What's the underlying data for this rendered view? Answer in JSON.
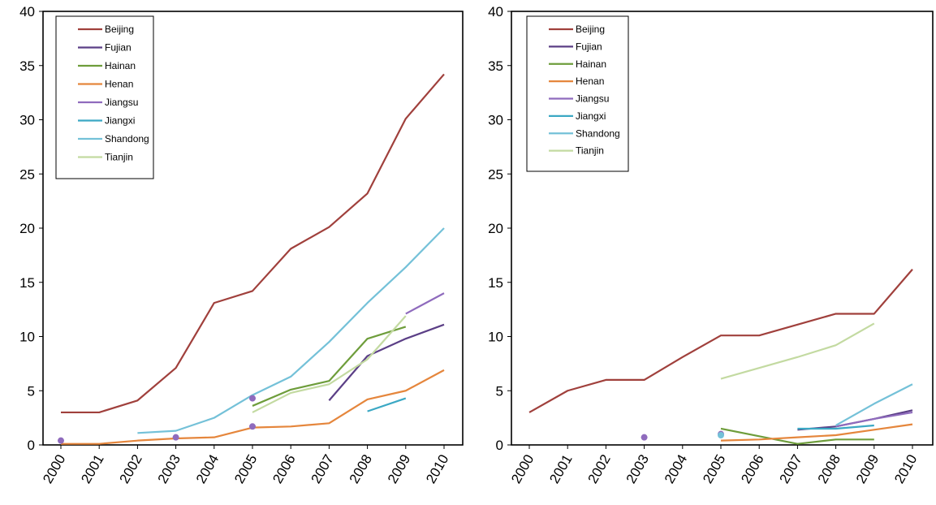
{
  "chart_data": [
    {
      "type": "line",
      "x": [
        "2000",
        "2001",
        "2002",
        "2003",
        "2004",
        "2005",
        "2006",
        "2007",
        "2008",
        "2009",
        "2010"
      ],
      "ylim": [
        0,
        40
      ],
      "yticks": [
        0,
        5,
        10,
        15,
        20,
        25,
        30,
        35,
        40
      ],
      "grid": false,
      "legend": "top-left",
      "series": [
        {
          "name": "Beijing",
          "color": "#a0403c",
          "values": [
            3.0,
            3.0,
            4.1,
            7.1,
            13.1,
            14.2,
            18.1,
            20.1,
            23.2,
            30.1,
            34.2
          ]
        },
        {
          "name": "Fujian",
          "color": "#5b3f86",
          "values": [
            null,
            null,
            null,
            null,
            null,
            null,
            null,
            4.1,
            8.2,
            9.8,
            11.1
          ]
        },
        {
          "name": "Hainan",
          "color": "#6e9d3b",
          "values": [
            null,
            null,
            null,
            null,
            null,
            3.6,
            5.1,
            5.9,
            9.8,
            10.9,
            null
          ]
        },
        {
          "name": "Henan",
          "color": "#e5863c",
          "values": [
            0.1,
            0.1,
            0.4,
            0.6,
            0.7,
            1.6,
            1.7,
            2.0,
            4.2,
            5.0,
            6.9
          ]
        },
        {
          "name": "Jiangsu",
          "color": "#8f6bbd",
          "values": [
            null,
            null,
            null,
            null,
            null,
            null,
            null,
            null,
            null,
            12.1,
            14.0
          ]
        },
        {
          "name": "Jiangxi",
          "color": "#3ba8c4",
          "values": [
            null,
            null,
            null,
            null,
            null,
            null,
            null,
            null,
            3.1,
            4.3,
            null
          ]
        },
        {
          "name": "Shandong",
          "color": "#74c1d8",
          "values": [
            null,
            null,
            1.1,
            1.3,
            2.5,
            4.6,
            6.3,
            9.5,
            13.1,
            16.4,
            20.0
          ]
        },
        {
          "name": "Tianjin",
          "color": "#c3daa1",
          "values": [
            null,
            null,
            null,
            null,
            null,
            3.0,
            4.8,
            5.6,
            7.9,
            11.9,
            null
          ]
        }
      ],
      "points": [
        {
          "x": "2000",
          "y": 0.4,
          "color": "#8f6bbd"
        },
        {
          "x": "2003",
          "y": 0.7,
          "color": "#8f6bbd"
        },
        {
          "x": "2005",
          "y": 4.3,
          "color": "#8f6bbd"
        },
        {
          "x": "2005",
          "y": 1.7,
          "color": "#8f6bbd"
        }
      ]
    },
    {
      "type": "line",
      "x": [
        "2000",
        "2001",
        "2002",
        "2003",
        "2004",
        "2005",
        "2006",
        "2007",
        "2008",
        "2009",
        "2010"
      ],
      "ylim": [
        0,
        40
      ],
      "yticks": [
        0,
        5,
        10,
        15,
        20,
        25,
        30,
        35,
        40
      ],
      "grid": false,
      "legend": "top-left",
      "series": [
        {
          "name": "Beijing",
          "color": "#a0403c",
          "values": [
            3.0,
            5.0,
            6.0,
            6.0,
            8.1,
            10.1,
            10.1,
            11.1,
            12.1,
            12.1,
            16.2
          ]
        },
        {
          "name": "Fujian",
          "color": "#5b3f86",
          "values": [
            null,
            null,
            null,
            null,
            null,
            null,
            null,
            1.4,
            1.7,
            2.4,
            3.2
          ]
        },
        {
          "name": "Hainan",
          "color": "#6e9d3b",
          "values": [
            null,
            null,
            null,
            null,
            null,
            1.5,
            0.8,
            0.1,
            0.5,
            0.5,
            null
          ]
        },
        {
          "name": "Henan",
          "color": "#e5863c",
          "values": [
            null,
            null,
            null,
            null,
            null,
            0.4,
            0.5,
            0.7,
            0.9,
            1.4,
            1.9
          ]
        },
        {
          "name": "Jiangsu",
          "color": "#8f6bbd",
          "values": [
            null,
            null,
            null,
            null,
            null,
            null,
            null,
            null,
            1.7,
            2.4,
            3.0
          ]
        },
        {
          "name": "Jiangxi",
          "color": "#3ba8c4",
          "values": [
            null,
            null,
            null,
            null,
            null,
            null,
            null,
            1.5,
            1.5,
            1.8,
            null
          ]
        },
        {
          "name": "Shandong",
          "color": "#74c1d8",
          "values": [
            null,
            null,
            null,
            null,
            null,
            null,
            null,
            null,
            1.8,
            3.8,
            5.6
          ]
        },
        {
          "name": "Tianjin",
          "color": "#c3daa1",
          "values": [
            null,
            null,
            null,
            null,
            null,
            6.1,
            7.1,
            8.1,
            9.2,
            11.2,
            null
          ]
        }
      ],
      "points": [
        {
          "x": "2003",
          "y": 0.7,
          "color": "#8f6bbd"
        },
        {
          "x": "2005",
          "y": 1.0,
          "color": "#8f6bbd"
        },
        {
          "x": "2005",
          "y": 0.9,
          "color": "#74c1d8"
        }
      ]
    }
  ]
}
